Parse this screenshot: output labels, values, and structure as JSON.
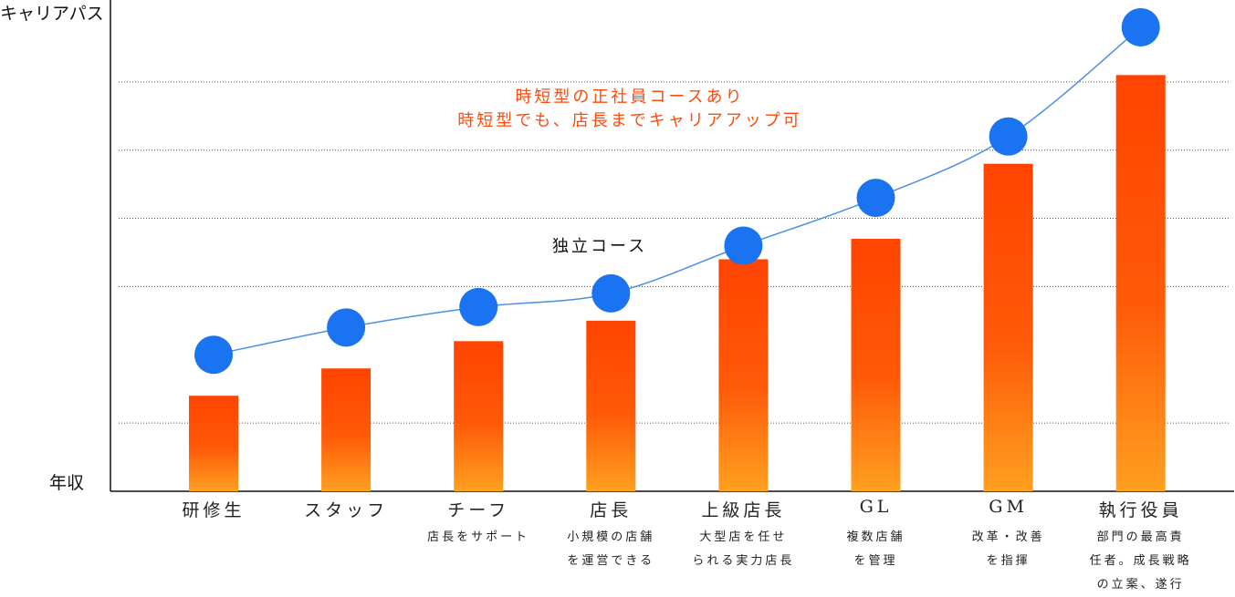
{
  "chart_data": {
    "type": "bar",
    "ylabel_top": "キャリアパス",
    "ylabel_bottom": "年収",
    "categories": [
      "研修生",
      "スタッフ",
      "チーフ",
      "店長",
      "上級店長",
      "GL",
      "GM",
      "執行役員"
    ],
    "descriptions": [
      "",
      "",
      "店長をサポート",
      "小規模の店舗\nを運営できる",
      "大型店を任せ\nられる実力店長",
      "複数店舗\nを管理",
      "改革・改善\nを指揮",
      "部門の最高責\n任者。成長戦略\nの立案、遂行"
    ],
    "values": [
      14,
      18,
      22,
      25,
      34,
      37,
      48,
      61
    ],
    "line_values": [
      20,
      24,
      27,
      29,
      36,
      43,
      52,
      68
    ],
    "ylim": [
      0,
      72
    ],
    "grid": [
      10,
      30,
      40,
      50,
      60
    ],
    "annotations": {
      "note_line1": "時短型の正社員コースあり",
      "note_line2": "時短型でも、店長までキャリアアップ可",
      "course": "独立コース"
    },
    "colors": {
      "bar_top": "#ff4400",
      "bar_bottom": "#ffa020",
      "marker": "#1a73f0",
      "line": "#4a90e2",
      "note": "#ff4a0a"
    }
  }
}
